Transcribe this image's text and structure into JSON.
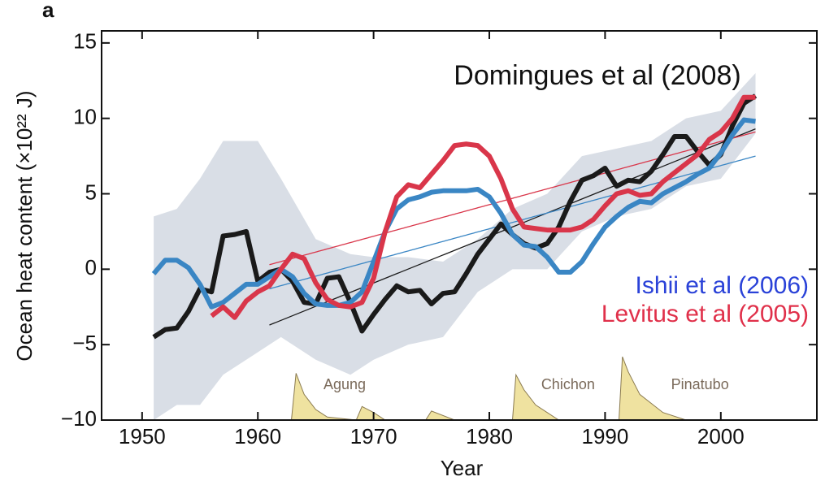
{
  "chart_data": {
    "type": "line",
    "panel_label": "a",
    "title": "Domingues et al (2008)",
    "x_label": "Year",
    "y_label": "Ocean heat content (×10²² J)",
    "xlim": [
      1946.5,
      2008.3
    ],
    "ylim": [
      -10,
      15.8
    ],
    "xticks": [
      1950,
      1960,
      1970,
      1980,
      1990,
      2000
    ],
    "yticks": [
      {
        "value": -10,
        "label": "−10"
      },
      {
        "value": -5,
        "label": "−5"
      },
      0,
      5,
      10,
      15
    ],
    "band": {
      "color": "#d9dee6",
      "x": [
        1951,
        1953,
        1955,
        1957,
        1960,
        1962,
        1965,
        1968,
        1970,
        1973,
        1976,
        1979,
        1982,
        1985,
        1988,
        1991,
        1994,
        1997,
        2000,
        2003
      ],
      "upper": [
        3.5,
        4,
        6,
        8.5,
        8.5,
        6,
        2,
        1,
        0.8,
        0.8,
        0.5,
        2,
        4,
        5,
        7.5,
        8,
        8.5,
        10,
        10.5,
        13
      ],
      "lower": [
        -10,
        -9,
        -9,
        -7,
        -5.5,
        -4.5,
        -6,
        -7,
        -6,
        -5,
        -4.5,
        -1.5,
        0,
        0,
        2.5,
        3.5,
        4,
        5.5,
        6,
        9
      ]
    },
    "volcanic": {
      "color": "#efe2a0",
      "x": [
        1962.9,
        1963.3,
        1964,
        1965,
        1966,
        1968.5,
        1969,
        1970,
        1971,
        1974.5,
        1975,
        1977,
        1982,
        1982.3,
        1983,
        1984,
        1986,
        1991.2,
        1991.5,
        1992,
        1993,
        1995,
        1997
      ],
      "values": [
        -10,
        -6.9,
        -8.3,
        -9.3,
        -9.8,
        -10,
        -9.1,
        -9.5,
        -10,
        -10,
        -9.4,
        -10,
        -10,
        -7,
        -8,
        -9,
        -10,
        -10,
        -5.8,
        -6.8,
        -8.3,
        -9.5,
        -10
      ],
      "labels": [
        {
          "text": "Agung",
          "x": 1967.5,
          "y": -7.7
        },
        {
          "text": "Chichon",
          "x": 1986.8,
          "y": -7.7
        },
        {
          "text": "Pinatubo",
          "x": 1998.2,
          "y": -7.7
        }
      ]
    },
    "series": [
      {
        "name": "Domingues et al (2008)",
        "color": "#1a1a1a",
        "x": [
          1951,
          1952,
          1953,
          1954,
          1955,
          1956,
          1957,
          1958,
          1959,
          1960,
          1961,
          1962,
          1963,
          1964,
          1965,
          1966,
          1967,
          1968,
          1969,
          1970,
          1971,
          1972,
          1973,
          1974,
          1975,
          1976,
          1977,
          1978,
          1979,
          1980,
          1981,
          1982,
          1983,
          1984,
          1985,
          1986,
          1987,
          1988,
          1989,
          1990,
          1991,
          1992,
          1993,
          1994,
          1995,
          1996,
          1997,
          1998,
          1999,
          2000,
          2001,
          2002,
          2003
        ],
        "values": [
          -4.5,
          -4,
          -3.9,
          -2.8,
          -1.3,
          -1.5,
          2.2,
          2.3,
          2.5,
          -0.8,
          -0.2,
          0,
          -0.8,
          -2.2,
          -2.3,
          -0.6,
          -0.5,
          -2.2,
          -4.1,
          -3,
          -2,
          -1.1,
          -1.5,
          -1.4,
          -2.3,
          -1.6,
          -1.5,
          -0.3,
          1,
          2,
          3,
          2.3,
          1.7,
          1.4,
          1.7,
          2.8,
          4.5,
          5.9,
          6.2,
          6.7,
          5.5,
          5.9,
          5.8,
          6.5,
          7.6,
          8.8,
          8.8,
          7.8,
          6.9,
          7.6,
          9.5,
          11,
          11.5
        ],
        "trend": {
          "x": [
            1961,
            2003
          ],
          "values": [
            -3.7,
            9.3
          ]
        }
      },
      {
        "name": "Ishii et al (2006)",
        "color": "#3a86c4",
        "label_color": "#2a42d8",
        "x": [
          1951,
          1952,
          1953,
          1954,
          1955,
          1956,
          1957,
          1958,
          1959,
          1960,
          1961,
          1962,
          1963,
          1964,
          1965,
          1966,
          1967,
          1968,
          1969,
          1970,
          1971,
          1972,
          1973,
          1974,
          1975,
          1976,
          1977,
          1978,
          1979,
          1980,
          1981,
          1982,
          1983,
          1984,
          1985,
          1986,
          1987,
          1988,
          1989,
          1990,
          1991,
          1992,
          1993,
          1994,
          1995,
          1996,
          1997,
          1998,
          1999,
          2000,
          2001,
          2002,
          2003
        ],
        "values": [
          -0.3,
          0.6,
          0.6,
          0.1,
          -1,
          -2.5,
          -2.2,
          -1.6,
          -1,
          -1,
          -0.5,
          0,
          -0.5,
          -1.6,
          -2.3,
          -2.4,
          -2.4,
          -2.2,
          -1.5,
          0.5,
          2.5,
          4,
          4.6,
          4.8,
          5.1,
          5.2,
          5.2,
          5.2,
          5.3,
          4.8,
          3.7,
          2.3,
          1.6,
          1.5,
          0.8,
          -0.2,
          -0.2,
          0.5,
          1.7,
          2.8,
          3.5,
          4.1,
          4.5,
          4.4,
          5,
          5.4,
          5.8,
          6.3,
          6.7,
          7.7,
          8.9,
          9.9,
          9.8
        ],
        "trend": {
          "x": [
            1961,
            2003
          ],
          "values": [
            -1.3,
            7.5
          ]
        }
      },
      {
        "name": "Levitus et al (2005)",
        "color": "#d9364a",
        "label_color": "#e0304a",
        "x": [
          1956,
          1957,
          1958,
          1959,
          1960,
          1961,
          1962,
          1963,
          1964,
          1965,
          1966,
          1967,
          1968,
          1969,
          1970,
          1971,
          1972,
          1973,
          1974,
          1975,
          1976,
          1977,
          1978,
          1979,
          1980,
          1981,
          1982,
          1983,
          1984,
          1985,
          1986,
          1987,
          1988,
          1989,
          1990,
          1991,
          1992,
          1993,
          1994,
          1995,
          1996,
          1997,
          1998,
          1999,
          2000,
          2001,
          2002,
          2003
        ],
        "values": [
          -3.1,
          -2.5,
          -3.2,
          -2.1,
          -1.5,
          -1.1,
          0,
          1,
          0.7,
          -0.9,
          -2,
          -2.4,
          -2.5,
          -2.2,
          -0.6,
          2.5,
          4.8,
          5.6,
          5.4,
          6.3,
          7.2,
          8.2,
          8.3,
          8.2,
          7.5,
          6,
          4,
          2.8,
          2.7,
          2.6,
          2.6,
          2.6,
          2.8,
          3.3,
          4.2,
          5,
          5.2,
          4.9,
          5,
          5.8,
          6.4,
          7,
          7.6,
          8.6,
          9.1,
          10,
          11.4,
          11.4
        ],
        "trend": {
          "x": [
            1961,
            2003
          ],
          "values": [
            0.3,
            9.1
          ]
        }
      }
    ]
  }
}
